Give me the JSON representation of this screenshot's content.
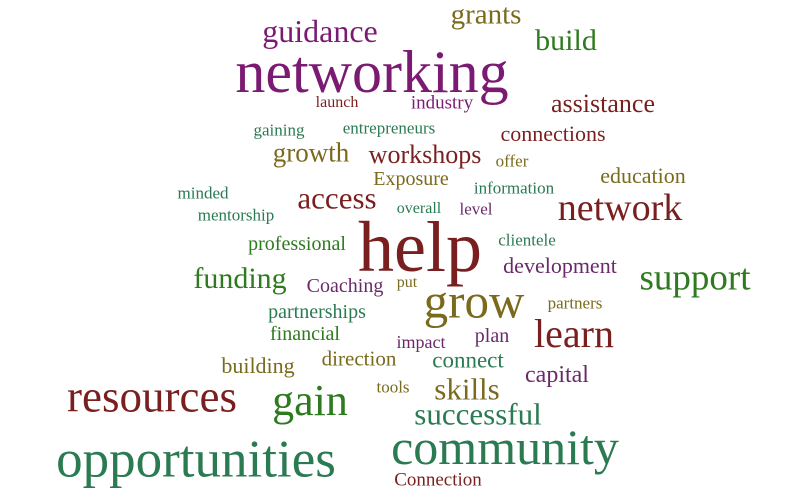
{
  "colors": {
    "purple": "#7b1a72",
    "maroon": "#7a1f1f",
    "olive": "#7a6a1c",
    "green": "#2e7a1e",
    "teal": "#2a7a52",
    "plum": "#6a2a6a"
  },
  "words": [
    {
      "text": "networking",
      "color": "purple"
    },
    {
      "text": "guidance",
      "color": "purple"
    },
    {
      "text": "grants",
      "color": "olive"
    },
    {
      "text": "build",
      "color": "green"
    },
    {
      "text": "launch",
      "color": "maroon"
    },
    {
      "text": "industry",
      "color": "purple"
    },
    {
      "text": "assistance",
      "color": "maroon"
    },
    {
      "text": "gaining",
      "color": "teal"
    },
    {
      "text": "entrepreneurs",
      "color": "teal"
    },
    {
      "text": "connections",
      "color": "maroon"
    },
    {
      "text": "growth",
      "color": "olive"
    },
    {
      "text": "workshops",
      "color": "maroon"
    },
    {
      "text": "offer",
      "color": "olive"
    },
    {
      "text": "Exposure",
      "color": "olive"
    },
    {
      "text": "education",
      "color": "olive"
    },
    {
      "text": "information",
      "color": "teal"
    },
    {
      "text": "minded",
      "color": "teal"
    },
    {
      "text": "access",
      "color": "maroon"
    },
    {
      "text": "overall",
      "color": "teal"
    },
    {
      "text": "level",
      "color": "plum"
    },
    {
      "text": "network",
      "color": "maroon"
    },
    {
      "text": "mentorship",
      "color": "teal"
    },
    {
      "text": "help",
      "color": "maroon"
    },
    {
      "text": "professional",
      "color": "green"
    },
    {
      "text": "clientele",
      "color": "teal"
    },
    {
      "text": "development",
      "color": "plum"
    },
    {
      "text": "funding",
      "color": "green"
    },
    {
      "text": "Coaching",
      "color": "plum"
    },
    {
      "text": "put",
      "color": "olive"
    },
    {
      "text": "grow",
      "color": "olive"
    },
    {
      "text": "support",
      "color": "green"
    },
    {
      "text": "partners",
      "color": "olive"
    },
    {
      "text": "partnerships",
      "color": "teal"
    },
    {
      "text": "financial",
      "color": "green"
    },
    {
      "text": "learn",
      "color": "maroon"
    },
    {
      "text": "plan",
      "color": "plum"
    },
    {
      "text": "impact",
      "color": "plum"
    },
    {
      "text": "direction",
      "color": "olive"
    },
    {
      "text": "building",
      "color": "olive"
    },
    {
      "text": "connect",
      "color": "teal"
    },
    {
      "text": "capital",
      "color": "plum"
    },
    {
      "text": "resources",
      "color": "maroon"
    },
    {
      "text": "gain",
      "color": "green"
    },
    {
      "text": "tools",
      "color": "olive"
    },
    {
      "text": "skills",
      "color": "olive"
    },
    {
      "text": "successful",
      "color": "teal"
    },
    {
      "text": "community",
      "color": "teal"
    },
    {
      "text": "opportunities",
      "color": "teal"
    },
    {
      "text": "Connection",
      "color": "maroon"
    }
  ]
}
